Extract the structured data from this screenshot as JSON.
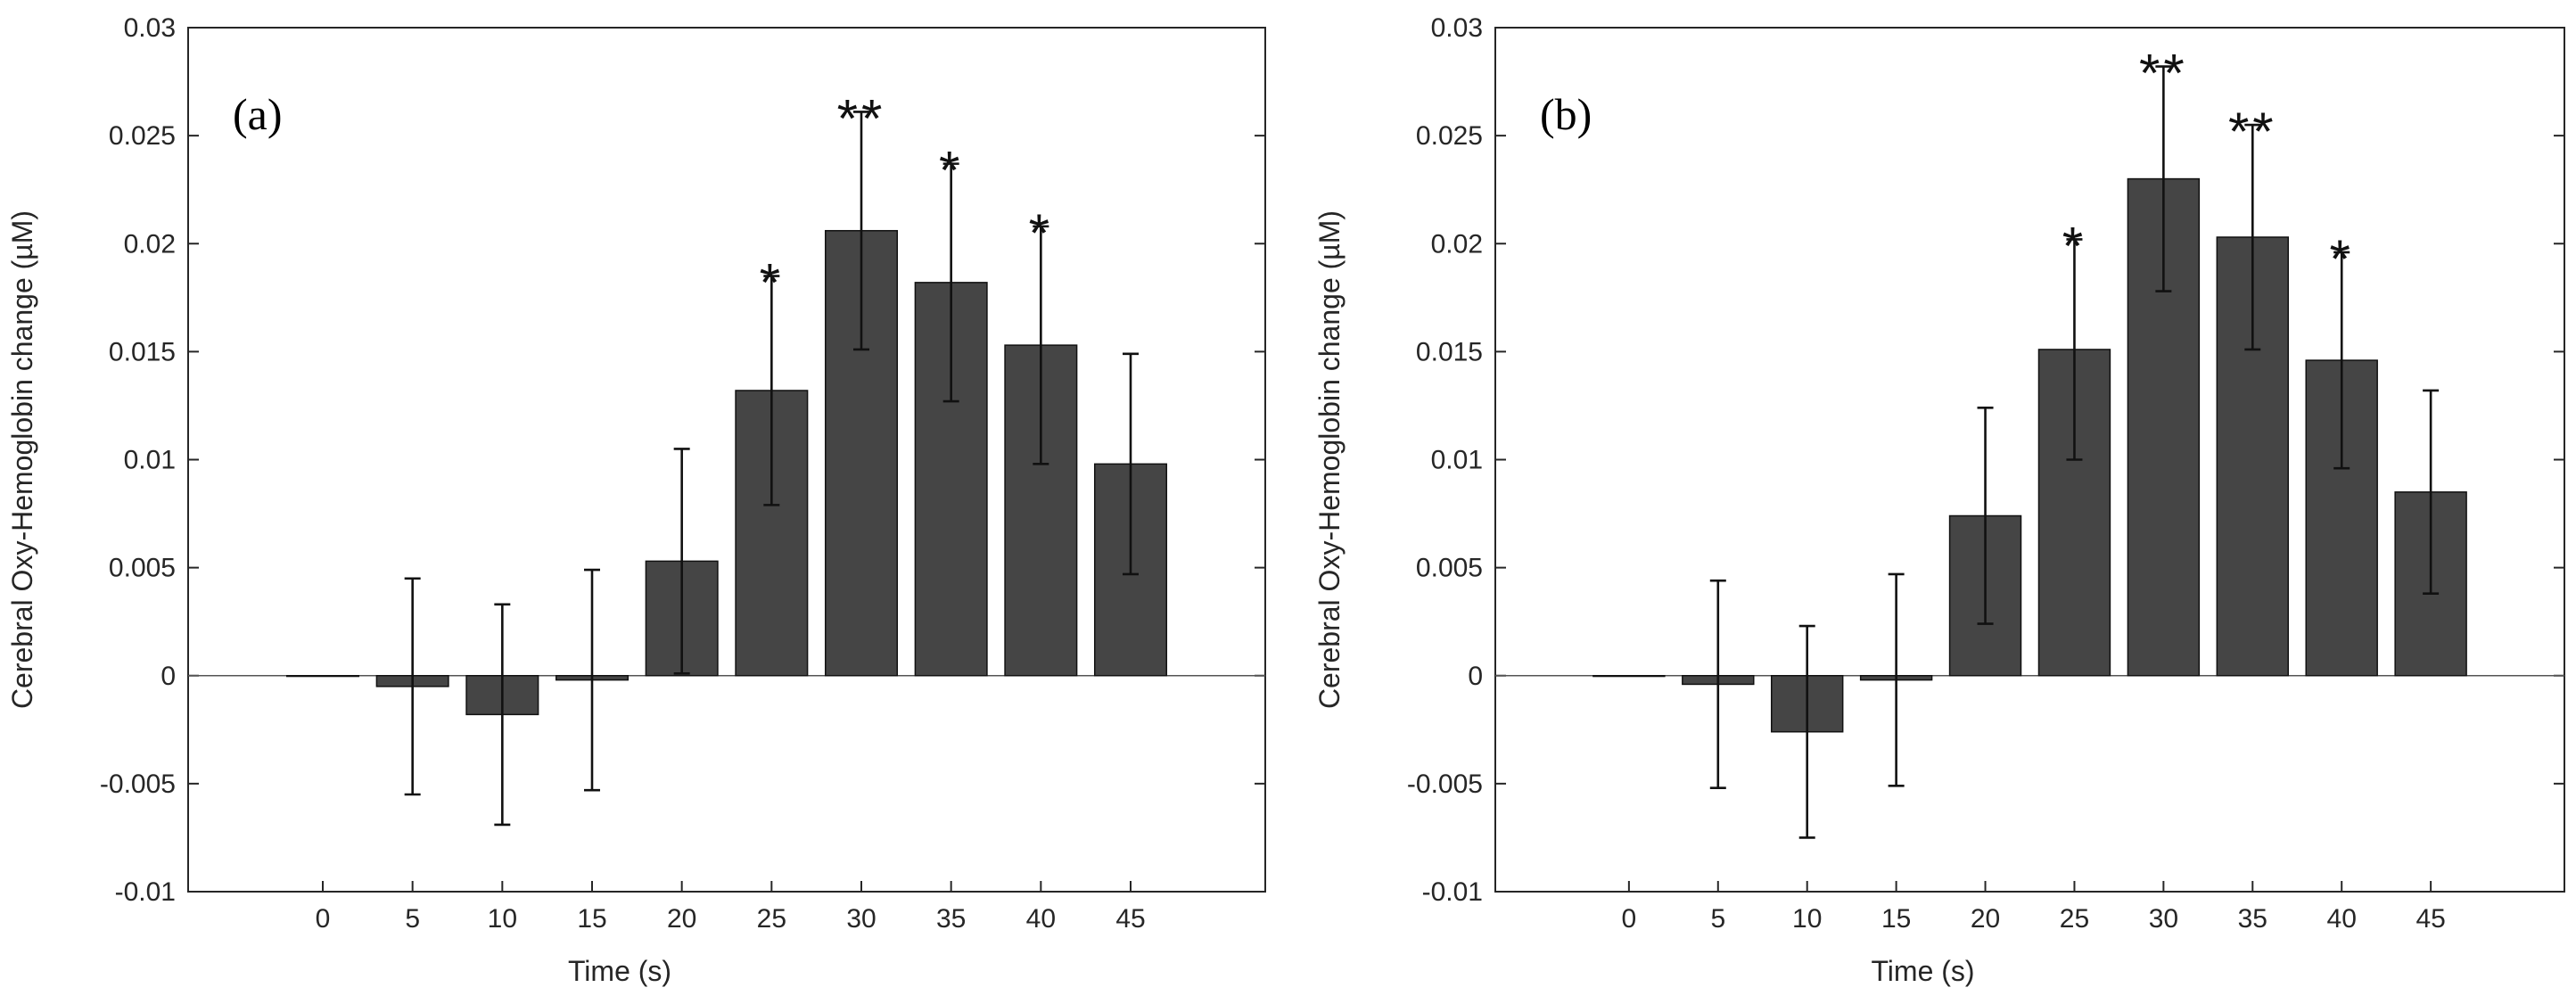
{
  "colors": {
    "bar": "#454545",
    "bar_edge": "#111111",
    "axis": "#262626",
    "error": "#111111"
  },
  "chart_data": [
    {
      "type": "bar",
      "panel_label": "(a)",
      "xlabel": "Time (s)",
      "ylabel": "Cerebral Oxy-Hemoglobin change (µM)",
      "ylim": [
        -0.01,
        0.03
      ],
      "yticks": [
        -0.01,
        -0.005,
        0,
        0.005,
        0.01,
        0.015,
        0.02,
        0.025,
        0.03
      ],
      "ytick_labels": [
        "-0.01",
        "-0.005",
        "0",
        "0.005",
        "0.01",
        "0.015",
        "0.02",
        "0.025",
        "0.03"
      ],
      "categories": [
        "0",
        "5",
        "10",
        "15",
        "20",
        "25",
        "30",
        "35",
        "40",
        "45"
      ],
      "values": [
        0,
        -0.0005,
        -0.0018,
        -0.0002,
        0.0053,
        0.0132,
        0.0206,
        0.0182,
        0.0153,
        0.0098
      ],
      "errors": [
        0,
        0.005,
        0.0051,
        0.0051,
        0.0052,
        0.0053,
        0.0055,
        0.0055,
        0.0055,
        0.0051
      ],
      "significance": [
        "",
        "",
        "",
        "",
        "",
        "*",
        "**",
        "*",
        "*",
        ""
      ]
    },
    {
      "type": "bar",
      "panel_label": "(b)",
      "xlabel": "Time (s)",
      "ylabel": "Cerebral Oxy-Hemoglobin change (µM)",
      "ylim": [
        -0.01,
        0.03
      ],
      "yticks": [
        -0.01,
        -0.005,
        0,
        0.005,
        0.01,
        0.015,
        0.02,
        0.025,
        0.03
      ],
      "ytick_labels": [
        "-0.01",
        "-0.005",
        "0",
        "0.005",
        "0.01",
        "0.015",
        "0.02",
        "0.025",
        "0.03"
      ],
      "categories": [
        "0",
        "5",
        "10",
        "15",
        "20",
        "25",
        "30",
        "35",
        "40",
        "45"
      ],
      "values": [
        0,
        -0.0004,
        -0.0026,
        -0.0002,
        0.0074,
        0.0151,
        0.023,
        0.0203,
        0.0146,
        0.0085
      ],
      "errors": [
        0,
        0.0048,
        0.0049,
        0.0049,
        0.005,
        0.0051,
        0.0052,
        0.0052,
        0.005,
        0.0047
      ],
      "significance": [
        "",
        "",
        "",
        "",
        "",
        "*",
        "**",
        "**",
        "*",
        ""
      ]
    }
  ]
}
